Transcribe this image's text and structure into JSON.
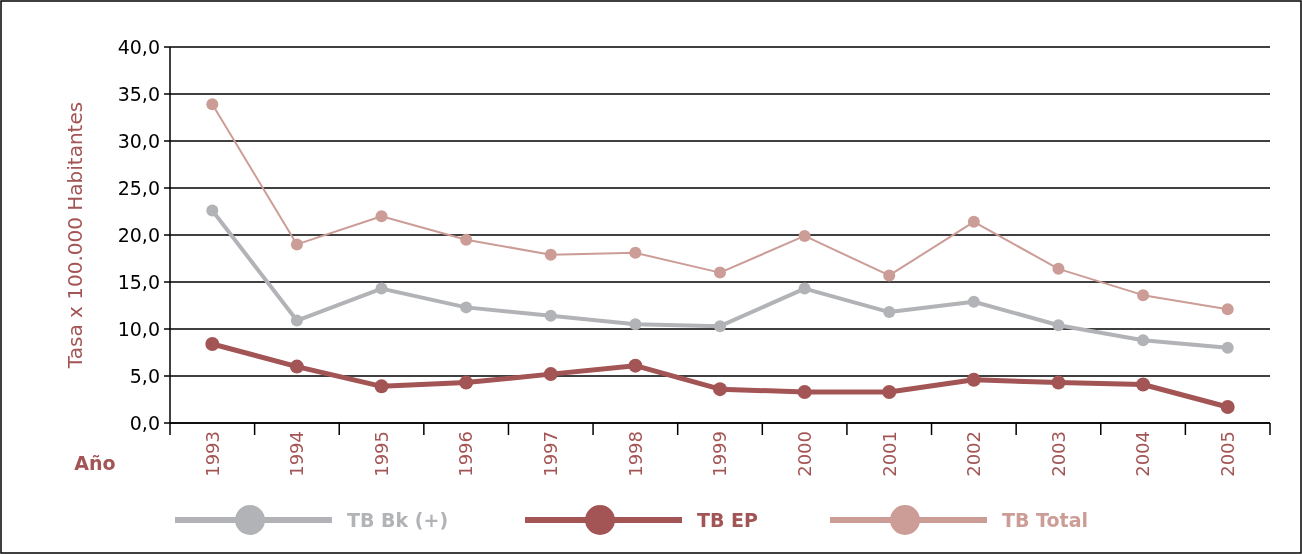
{
  "chart_data": {
    "type": "line",
    "xlabel": "Año",
    "ylabel": "Tasa x 100.000 Habitantes",
    "categories": [
      "1993",
      "1994",
      "1995",
      "1996",
      "1997",
      "1998",
      "1999",
      "2000",
      "2001",
      "2002",
      "2003",
      "2004",
      "2005"
    ],
    "ylim": [
      0,
      40
    ],
    "yticks": [
      {
        "value": 0,
        "label": "0,0"
      },
      {
        "value": 5,
        "label": "5,0"
      },
      {
        "value": 10,
        "label": "10,0"
      },
      {
        "value": 15,
        "label": "15,0"
      },
      {
        "value": 20,
        "label": "20,0"
      },
      {
        "value": 25,
        "label": "25,0"
      },
      {
        "value": 30,
        "label": "30,0"
      },
      {
        "value": 35,
        "label": "35,0"
      },
      {
        "value": 40,
        "label": "40,0"
      }
    ],
    "grid": "y",
    "legend": "bottom",
    "marker": "circle",
    "line_style": "solid",
    "series": [
      {
        "name": "TB Bk (+)",
        "color": "#b1b3b6",
        "values": [
          22.6,
          10.9,
          14.3,
          12.3,
          11.4,
          10.5,
          10.3,
          14.3,
          11.8,
          12.9,
          10.4,
          8.8,
          8.0
        ]
      },
      {
        "name": "TB EP",
        "color": "#a35454",
        "values": [
          8.4,
          6.0,
          3.9,
          4.3,
          5.2,
          6.1,
          3.6,
          3.3,
          3.3,
          4.6,
          4.3,
          4.1,
          1.7
        ]
      },
      {
        "name": "TB Total",
        "color": "#cc9c96",
        "values": [
          33.9,
          19.0,
          22.0,
          19.5,
          17.9,
          18.1,
          16.0,
          19.9,
          15.7,
          21.4,
          16.4,
          13.6,
          12.1
        ]
      }
    ]
  }
}
